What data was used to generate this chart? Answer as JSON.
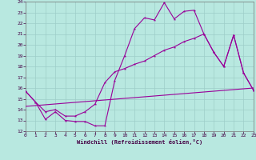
{
  "xlabel": "Windchill (Refroidissement éolien,°C)",
  "background_color": "#b8e8e0",
  "grid_color": "#9ecec8",
  "line_color": "#990099",
  "ylim": [
    12,
    24
  ],
  "xlim": [
    0,
    23
  ],
  "yticks": [
    12,
    13,
    14,
    15,
    16,
    17,
    18,
    19,
    20,
    21,
    22,
    23,
    24
  ],
  "xticks": [
    0,
    1,
    2,
    3,
    4,
    5,
    6,
    7,
    8,
    9,
    10,
    11,
    12,
    13,
    14,
    15,
    16,
    17,
    18,
    19,
    20,
    21,
    22,
    23
  ],
  "line1_x": [
    0,
    1,
    2,
    3,
    4,
    5,
    6,
    7,
    8,
    9,
    10,
    11,
    12,
    13,
    14,
    15,
    16,
    17,
    18,
    19,
    20,
    21,
    22,
    23
  ],
  "line1_y": [
    15.7,
    14.7,
    13.1,
    13.8,
    13.0,
    12.9,
    12.9,
    12.5,
    12.5,
    16.7,
    19.0,
    21.5,
    22.5,
    22.3,
    23.9,
    22.4,
    23.1,
    23.2,
    21.0,
    19.3,
    18.0,
    20.9,
    17.4,
    15.8
  ],
  "line2_x": [
    0,
    1,
    2,
    3,
    4,
    5,
    6,
    7,
    8,
    9,
    10,
    11,
    12,
    13,
    14,
    15,
    16,
    17,
    18,
    19,
    20,
    21,
    22,
    23
  ],
  "line2_y": [
    15.7,
    14.7,
    13.8,
    14.0,
    13.4,
    13.4,
    13.8,
    14.5,
    16.5,
    17.5,
    17.8,
    18.2,
    18.5,
    19.0,
    19.5,
    19.8,
    20.3,
    20.6,
    21.0,
    19.3,
    18.0,
    20.9,
    17.4,
    15.8
  ],
  "line3_x": [
    0,
    23
  ],
  "line3_y": [
    14.3,
    16.0
  ]
}
